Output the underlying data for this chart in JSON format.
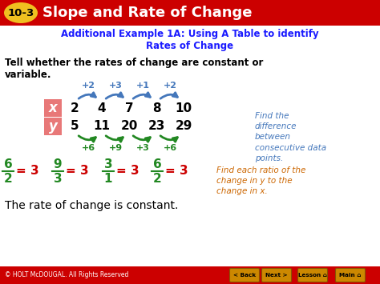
{
  "title_badge": "10-3",
  "title_text": "Slope and Rate of Change",
  "subtitle": "Additional Example 1A: Using A Table to identify\nRates of Change",
  "question": "Tell whether the rates of change are constant or\nvariable.",
  "x_values": [
    "2",
    "4",
    "7",
    "8",
    "10"
  ],
  "y_values": [
    "5",
    "11",
    "20",
    "23",
    "29"
  ],
  "x_label": "x",
  "y_label": "y",
  "x_diffs": [
    "+2",
    "+3",
    "+1",
    "+2"
  ],
  "y_diffs": [
    "+6",
    "+9",
    "+3",
    "+6"
  ],
  "ratio_nums": [
    "6",
    "9",
    "3",
    "6"
  ],
  "ratio_dens": [
    "2",
    "3",
    "1",
    "2"
  ],
  "right_note1": "Find the\ndifference\nbetween\nconsecutive data\npoints.",
  "right_note2": "Find each ratio of the\nchange in y to the\nchange in x.",
  "conclusion": "The rate of change is constant.",
  "footer": "© HOLT McDOUGAL. All Rights Reserved",
  "header_bg": "#cc0000",
  "badge_yellow": "#f0c020",
  "subtitle_color": "#1a1aff",
  "question_color": "#000000",
  "table_header_bg": "#e87878",
  "x_diff_color": "#4477bb",
  "y_diff_color": "#228822",
  "ratio_frac_color": "#228822",
  "ratio_eq_color": "#cc0000",
  "right_note1_color": "#4477bb",
  "right_note2_color": "#cc6600",
  "conclusion_color": "#000000",
  "footer_bg": "#cc0000",
  "btn_bg": "#cc8800",
  "bg_color": "#ffffff"
}
